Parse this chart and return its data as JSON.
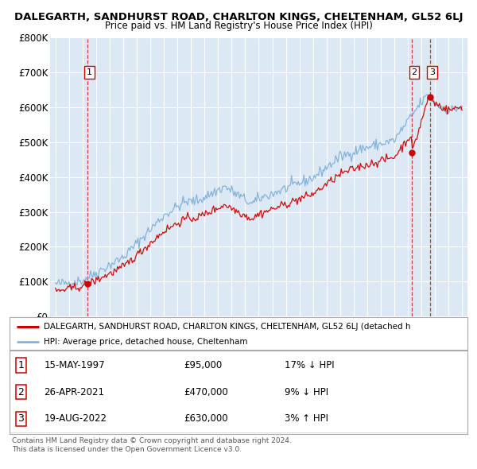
{
  "title": "DALEGARTH, SANDHURST ROAD, CHARLTON KINGS, CHELTENHAM, GL52 6LJ",
  "subtitle": "Price paid vs. HM Land Registry's House Price Index (HPI)",
  "ylim": [
    0,
    800000
  ],
  "yticks": [
    0,
    100000,
    200000,
    300000,
    400000,
    500000,
    600000,
    700000,
    800000
  ],
  "ytick_labels": [
    "£0",
    "£100K",
    "£200K",
    "£300K",
    "£400K",
    "£500K",
    "£600K",
    "£700K",
    "£800K"
  ],
  "xlim_start": 1994.6,
  "xlim_end": 2025.4,
  "background_color": "#dde8f5",
  "plot_bg_color": "#dde8f5",
  "grid_color": "#ffffff",
  "red_color": "#cc0000",
  "blue_color": "#7aaed6",
  "transactions": [
    {
      "num": 1,
      "date": "15-MAY-1997",
      "price": 95000,
      "year": 1997.37,
      "hpi_rel": "17% ↓ HPI"
    },
    {
      "num": 2,
      "date": "26-APR-2021",
      "price": 470000,
      "year": 2021.32,
      "hpi_rel": "9% ↓ HPI"
    },
    {
      "num": 3,
      "date": "19-AUG-2022",
      "price": 630000,
      "year": 2022.63,
      "hpi_rel": "3% ↑ HPI"
    }
  ],
  "legend_property": "DALEGARTH, SANDHURST ROAD, CHARLTON KINGS, CHELTENHAM, GL52 6LJ (detached h",
  "legend_hpi": "HPI: Average price, detached house, Cheltenham",
  "footer1": "Contains HM Land Registry data © Crown copyright and database right 2024.",
  "footer2": "This data is licensed under the Open Government Licence v3.0.",
  "fig_width": 6.0,
  "fig_height": 5.9,
  "dpi": 100
}
